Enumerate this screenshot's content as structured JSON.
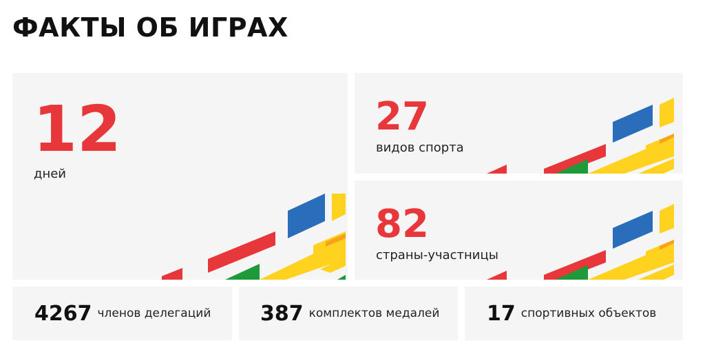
{
  "title": "ФАКТЫ ОБ ИГРАХ",
  "colors": {
    "accent_red": "#e8373b",
    "stripe_blue": "#2a6ebb",
    "stripe_yellow": "#ffd21f",
    "stripe_orange": "#f7a21b",
    "stripe_green": "#1e9a3a",
    "card_bg": "#f5f5f5"
  },
  "cards": {
    "days": {
      "value": "12",
      "label": "дней"
    },
    "sports": {
      "value": "27",
      "label": "видов спорта"
    },
    "countries": {
      "value": "82",
      "label": "страны-участницы"
    }
  },
  "stats": [
    {
      "value": "4267",
      "label": "членов делегаций"
    },
    {
      "value": "387",
      "label": "комплектов медалей"
    },
    {
      "value": "17",
      "label": "спортивных объектов"
    }
  ]
}
